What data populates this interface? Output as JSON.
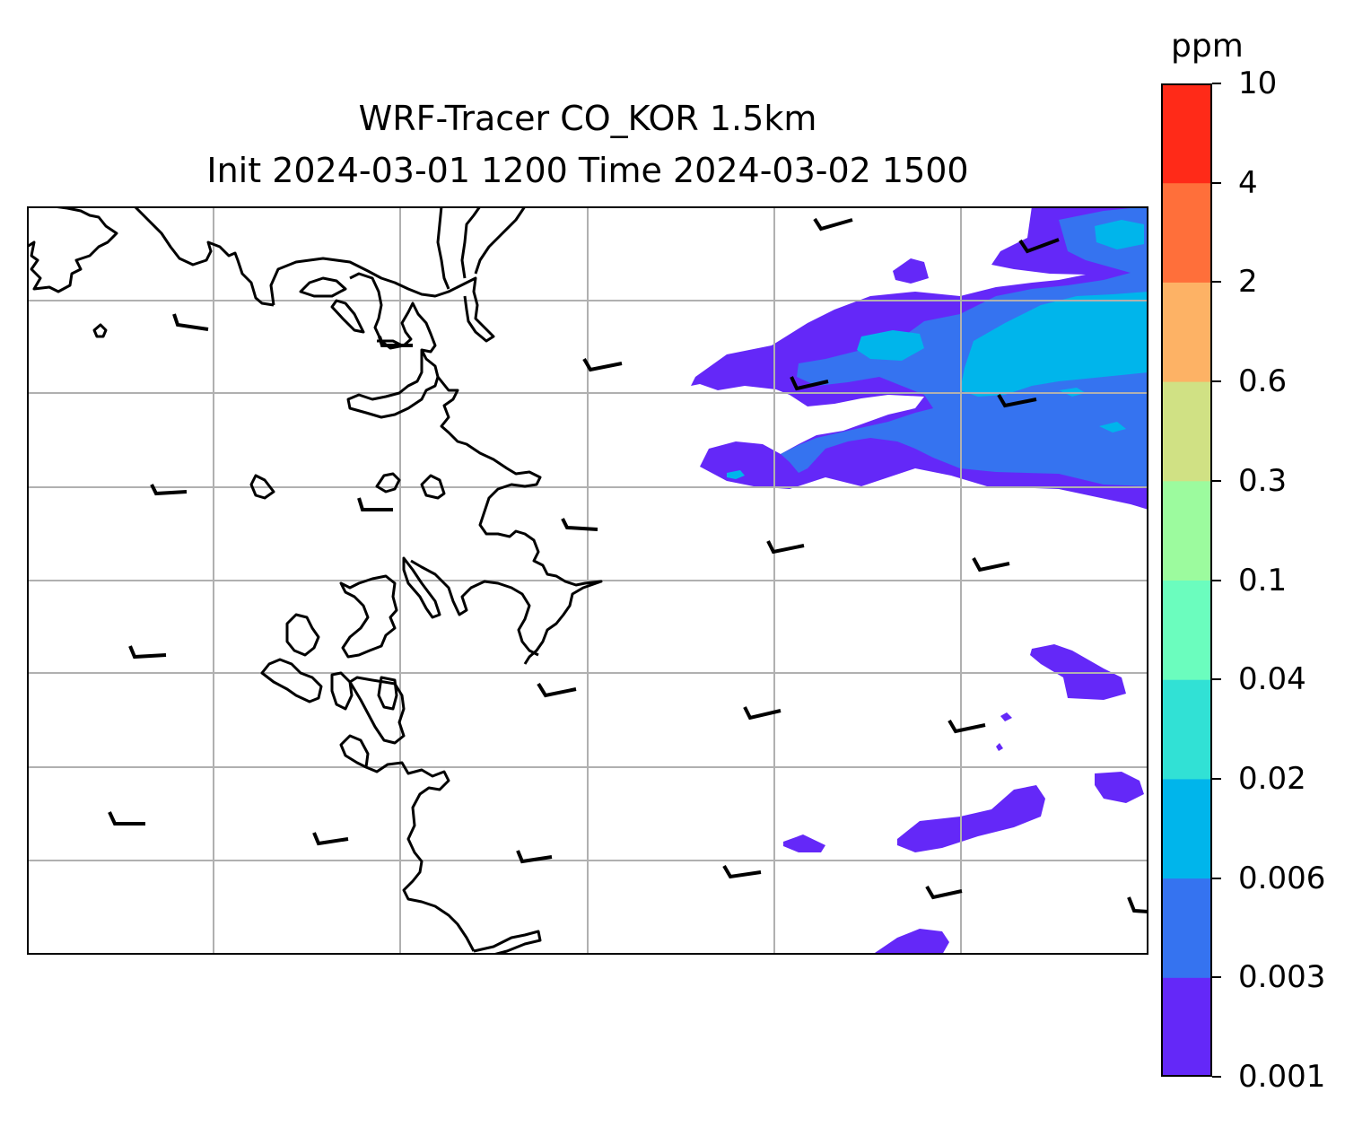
{
  "title": {
    "line1": "WRF-Tracer CO_KOR 1.5km",
    "line2": "Init 2024-03-01 1200 Time 2024-03-02 1500"
  },
  "colorbar": {
    "unit": "ppm",
    "levels": [
      "0.001",
      "0.003",
      "0.006",
      "0.02",
      "0.04",
      "0.1",
      "0.3",
      "0.6",
      "2",
      "4",
      "10"
    ],
    "colors": [
      "#6428f8",
      "#3573f0",
      "#00b5eb",
      "#31e1d5",
      "#6bfdbe",
      "#9cfb9e",
      "#d0e184",
      "#fdb265",
      "#ff6f3a",
      "#ff2a18"
    ]
  },
  "map": {
    "grid": true,
    "coastline_color": "#000000",
    "gridline_color": "#b0b0b0"
  }
}
